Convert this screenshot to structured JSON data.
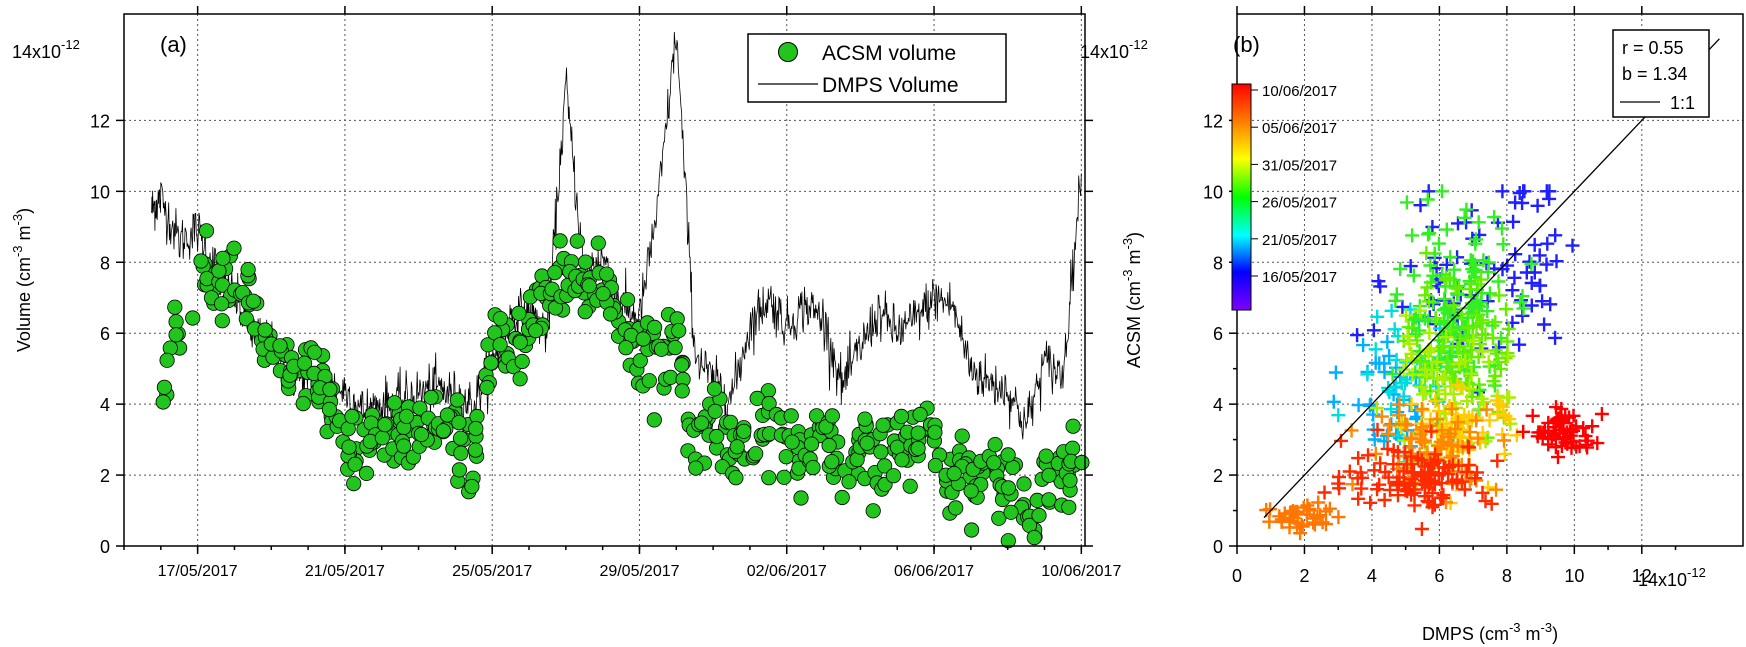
{
  "chart_data": [
    {
      "panel": "(a)",
      "type": "line+scatter",
      "exponent_label": "14x10",
      "exponent_sup": "-12",
      "ylabel": "Volume (cm",
      "ylabel_sup1": "-3",
      "ylabel_mid": " m",
      "ylabel_sup2": "-3",
      "ylabel_end": ")",
      "ylim": [
        0,
        15
      ],
      "yticks": [
        0,
        2,
        4,
        6,
        8,
        10,
        12
      ],
      "ytick_labels": [
        "0",
        "2",
        "4",
        "6",
        "8",
        "10",
        "12"
      ],
      "xrange_days": [
        "15/05/2017",
        "10/06/2017"
      ],
      "xtick_labels": [
        "17/05/2017",
        "21/05/2017",
        "25/05/2017",
        "29/05/2017",
        "02/06/2017",
        "06/06/2017",
        "10/06/2017"
      ],
      "grid": true,
      "legend_position": "top-right",
      "series": [
        {
          "name": "ACSM volume",
          "style": "circles",
          "color": "#22c41e",
          "edge": "#000000",
          "x": [
            "16/05",
            "17/05",
            "17/05 12h",
            "18/05",
            "18/05 12h",
            "19/05",
            "19/05 12h",
            "20/05",
            "20/05 12h",
            "21/05",
            "21/05 12h",
            "22/05",
            "22/05 12h",
            "23/05",
            "23/05 12h",
            "24/05",
            "24/05 12h",
            "25/05",
            "25/05 12h",
            "26/05",
            "26/05 12h",
            "27/05",
            "27/05 12h",
            "28/05",
            "28/05 12h",
            "29/05",
            "29/05 12h",
            "30/05",
            "30/05 12h",
            "31/05",
            "31/05 12h",
            "01/06",
            "01/06 12h",
            "02/06",
            "02/06 12h",
            "03/06",
            "03/06 12h",
            "04/06",
            "04/06 12h",
            "05/06",
            "05/06 12h",
            "06/06",
            "06/06 12h",
            "07/06",
            "07/06 12h",
            "08/06",
            "08/06 12h",
            "09/06",
            "09/06 12h",
            "10/06"
          ],
          "y": [
            3.8,
            8.5,
            7.2,
            7.8,
            6.8,
            5.2,
            4.6,
            4.8,
            4.3,
            2.2,
            2.8,
            3.3,
            3.1,
            3.4,
            3.6,
            3.0,
            2.5,
            5.8,
            5.4,
            6.0,
            6.8,
            7.6,
            7.2,
            7.8,
            6.2,
            5.8,
            4.8,
            6.0,
            2.4,
            3.8,
            3.0,
            2.8,
            3.2,
            2.9,
            2.6,
            3.0,
            1.8,
            2.5,
            2.4,
            2.7,
            3.0,
            3.2,
            1.9,
            2.0,
            2.2,
            1.6,
            1.0,
            1.9,
            2.0,
            2.6
          ]
        },
        {
          "name": "DMPS Volume",
          "style": "line",
          "color": "#000000",
          "x": [
            "15/05 18h",
            "16/05",
            "16/05 12h",
            "17/05",
            "17/05 12h",
            "18/05",
            "18/05 12h",
            "19/05",
            "19/05 12h",
            "20/05",
            "20/05 12h",
            "21/05",
            "21/05 12h",
            "22/05",
            "22/05 12h",
            "23/05",
            "23/05 12h",
            "24/05",
            "24/05 12h",
            "25/05",
            "25/05 12h",
            "26/05",
            "26/05 12h",
            "27/05",
            "27/05 12h",
            "28/05",
            "28/05 12h",
            "29/05",
            "29/05 12h",
            "30/05",
            "30/05 12h",
            "31/05",
            "31/05 12h",
            "01/06",
            "01/06 12h",
            "02/06",
            "02/06 12h",
            "03/06",
            "03/06 12h",
            "04/06",
            "04/06 12h",
            "05/06",
            "05/06 12h",
            "06/06",
            "06/06 12h",
            "07/06",
            "07/06 12h",
            "08/06",
            "08/06 12h",
            "09/06",
            "09/06 12h",
            "10/06"
          ],
          "y": [
            9.5,
            9.8,
            8.6,
            8.9,
            7.8,
            7.0,
            6.0,
            5.6,
            4.8,
            4.7,
            4.5,
            4.4,
            3.8,
            4.0,
            4.1,
            4.3,
            4.5,
            4.2,
            4.0,
            5.2,
            6.4,
            6.6,
            6.0,
            13.0,
            7.6,
            8.2,
            6.8,
            6.4,
            9.6,
            14.5,
            5.5,
            4.6,
            4.2,
            6.2,
            7.0,
            6.2,
            6.8,
            6.4,
            4.5,
            5.6,
            6.6,
            6.0,
            6.4,
            7.0,
            6.8,
            5.0,
            4.6,
            4.4,
            3.4,
            5.2,
            4.8,
            10.5
          ]
        }
      ]
    },
    {
      "panel": "(b)",
      "type": "scatter",
      "exponent_label": "14x10",
      "exponent_sup": "-12",
      "x_exponent_label": "14x10",
      "x_exponent_sup": "-12",
      "xlabel": "DMPS (cm",
      "xlabel_sup1": "-3",
      "xlabel_mid": " m",
      "xlabel_sup2": "-3",
      "xlabel_end": ")",
      "ylabel": "ACSM (cm",
      "ylabel_sup1": "-3",
      "ylabel_mid": " m",
      "ylabel_sup2": "-3",
      "ylabel_end": ")",
      "xlim": [
        0,
        15
      ],
      "ylim": [
        0,
        15
      ],
      "ticks": [
        0,
        2,
        4,
        6,
        8,
        10,
        12
      ],
      "tick_labels": [
        "0",
        "2",
        "4",
        "6",
        "8",
        "10",
        "12"
      ],
      "yticks": [
        0,
        2,
        4,
        6,
        8,
        10,
        12
      ],
      "ytick_labels": [
        "0",
        "2",
        "4",
        "6",
        "8",
        "10",
        "12"
      ],
      "grid": true,
      "legend_position": "top-right",
      "stats": [
        "r  = 0.55",
        "b = 1.34"
      ],
      "line_label": "1:1",
      "colorbar_labels": [
        "10/06/2017",
        "05/06/2017",
        "31/05/2017",
        "26/05/2017",
        "21/05/2017",
        "16/05/2017"
      ],
      "colorbar_colors": [
        "#ff0000",
        "#ff8000",
        "#ffff00",
        "#00ff00",
        "#00ffff",
        "#0000ff",
        "#8000ff"
      ],
      "marker": "plus",
      "clusters": [
        {
          "color": "#1f1fff",
          "cx": 6.2,
          "cy": 7.2,
          "sx": 0.9,
          "sy": 1.2,
          "n": 45
        },
        {
          "color": "#1f1fff",
          "cx": 8.6,
          "cy": 8.2,
          "sx": 0.6,
          "sy": 1.3,
          "n": 40
        },
        {
          "color": "#00b0ff",
          "cx": 4.6,
          "cy": 4.0,
          "sx": 0.7,
          "sy": 1.0,
          "n": 40
        },
        {
          "color": "#00dddd",
          "cx": 5.0,
          "cy": 5.0,
          "sx": 0.8,
          "sy": 1.0,
          "n": 35
        },
        {
          "color": "#33ee22",
          "cx": 6.4,
          "cy": 6.6,
          "sx": 0.8,
          "sy": 1.4,
          "n": 140
        },
        {
          "color": "#66ee00",
          "cx": 6.8,
          "cy": 5.4,
          "sx": 0.8,
          "sy": 1.0,
          "n": 80
        },
        {
          "color": "#aaee00",
          "cx": 6.0,
          "cy": 4.4,
          "sx": 1.0,
          "sy": 0.8,
          "n": 60
        },
        {
          "color": "#ffcc00",
          "cx": 6.6,
          "cy": 3.2,
          "sx": 0.8,
          "sy": 0.6,
          "n": 70
        },
        {
          "color": "#ff8800",
          "cx": 5.8,
          "cy": 2.8,
          "sx": 1.0,
          "sy": 0.6,
          "n": 70
        },
        {
          "color": "#ff7700",
          "cx": 2.0,
          "cy": 0.8,
          "sx": 0.6,
          "sy": 0.25,
          "n": 40
        },
        {
          "color": "#ff2a00",
          "cx": 5.4,
          "cy": 2.0,
          "sx": 1.1,
          "sy": 0.45,
          "n": 110
        },
        {
          "color": "#ff0000",
          "cx": 9.7,
          "cy": 3.2,
          "sx": 0.45,
          "sy": 0.3,
          "n": 60
        }
      ]
    }
  ],
  "legend_a": [
    "ACSM volume",
    "DMPS Volume"
  ]
}
